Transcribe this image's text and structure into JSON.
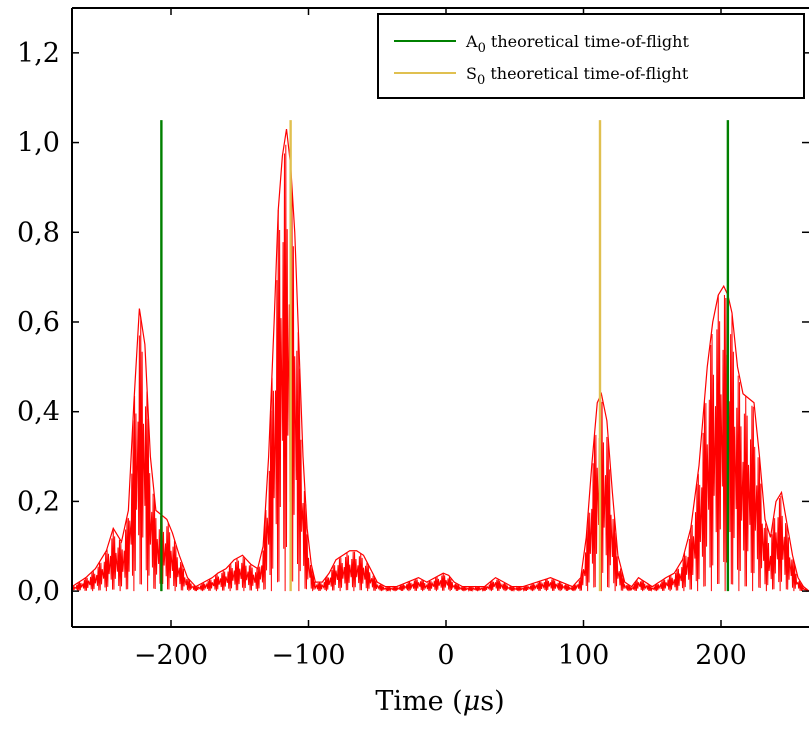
{
  "chart_data": {
    "type": "line",
    "title": "",
    "xlabel": "Time (μs)",
    "ylabel": "",
    "xlim": [
      -272,
      264
    ],
    "ylim": [
      -0.08,
      1.3
    ],
    "xticks": [
      -200,
      -100,
      0,
      100,
      200
    ],
    "xtick_labels": [
      "−200",
      "−100",
      "0",
      "100",
      "200"
    ],
    "yticks": [
      0,
      0.2,
      0.4,
      0.6,
      0.8,
      1.0,
      1.2
    ],
    "ytick_labels": [
      "0,0",
      "0,2",
      "0,4",
      "0,6",
      "0,8",
      "1,0",
      "1,2"
    ],
    "grid": false,
    "legend_position": "top-right",
    "series": [
      {
        "name": "",
        "color": "#ff0000",
        "style": "oscillating envelope",
        "envelope": {
          "x": [
            -272,
            -262,
            -255,
            -247,
            -242,
            -236,
            -231,
            -227,
            -223,
            -219,
            -215,
            -211,
            -207,
            -203,
            -199,
            -194,
            -188,
            -182,
            -176,
            -170,
            -166,
            -160,
            -154,
            -148,
            -142,
            -137,
            -133,
            -129,
            -125,
            -122,
            -119,
            -116,
            -113,
            -110,
            -107,
            -104,
            -101,
            -98,
            -95,
            -90,
            -85,
            -80,
            -75,
            -70,
            -65,
            -60,
            -55,
            -50,
            -44,
            -36,
            -28,
            -20,
            -14,
            -8,
            -2,
            2,
            6,
            12,
            20,
            28,
            36,
            42,
            48,
            56,
            66,
            76,
            84,
            92,
            98,
            102,
            106,
            110,
            113,
            117,
            121,
            125,
            130,
            135,
            140,
            145,
            150,
            155,
            160,
            166,
            172,
            178,
            184,
            190,
            194,
            198,
            202,
            205,
            208,
            212,
            216,
            220,
            224,
            228,
            232,
            236,
            240,
            244,
            248,
            252,
            256,
            260,
            264
          ],
          "y": [
            0.01,
            0.03,
            0.05,
            0.09,
            0.14,
            0.11,
            0.18,
            0.42,
            0.63,
            0.55,
            0.3,
            0.18,
            0.17,
            0.16,
            0.13,
            0.08,
            0.03,
            0.01,
            0.02,
            0.03,
            0.04,
            0.05,
            0.07,
            0.08,
            0.06,
            0.05,
            0.1,
            0.3,
            0.6,
            0.85,
            0.97,
            1.03,
            0.95,
            0.8,
            0.55,
            0.3,
            0.14,
            0.06,
            0.02,
            0.02,
            0.04,
            0.07,
            0.08,
            0.09,
            0.09,
            0.08,
            0.05,
            0.02,
            0.01,
            0.01,
            0.02,
            0.03,
            0.02,
            0.03,
            0.04,
            0.035,
            0.02,
            0.01,
            0.01,
            0.01,
            0.03,
            0.02,
            0.01,
            0.01,
            0.02,
            0.03,
            0.02,
            0.01,
            0.03,
            0.12,
            0.28,
            0.42,
            0.44,
            0.38,
            0.22,
            0.08,
            0.02,
            0.01,
            0.03,
            0.02,
            0.01,
            0.02,
            0.03,
            0.04,
            0.07,
            0.14,
            0.28,
            0.5,
            0.6,
            0.66,
            0.68,
            0.66,
            0.62,
            0.5,
            0.44,
            0.43,
            0.42,
            0.3,
            0.16,
            0.12,
            0.2,
            0.22,
            0.15,
            0.08,
            0.03,
            0.01,
            0.0
          ]
        }
      }
    ],
    "vertical_lines": [
      {
        "name": "A0 theoretical time-of-flight",
        "color": "#008000",
        "x": [
          -207,
          205
        ],
        "ymin": 0,
        "ymax": 1.05
      },
      {
        "name": "S0 theoretical time-of-flight",
        "color": "#e0c050",
        "x": [
          -113,
          112
        ],
        "ymin": 0,
        "ymax": 1.05
      }
    ]
  },
  "legend": {
    "items": [
      {
        "sym": "A",
        "sub": "0",
        "rest": " theoretical time-of-flight",
        "color": "#008000"
      },
      {
        "sym": "S",
        "sub": "0",
        "rest": " theoretical time-of-flight",
        "color": "#e0c050"
      }
    ]
  }
}
